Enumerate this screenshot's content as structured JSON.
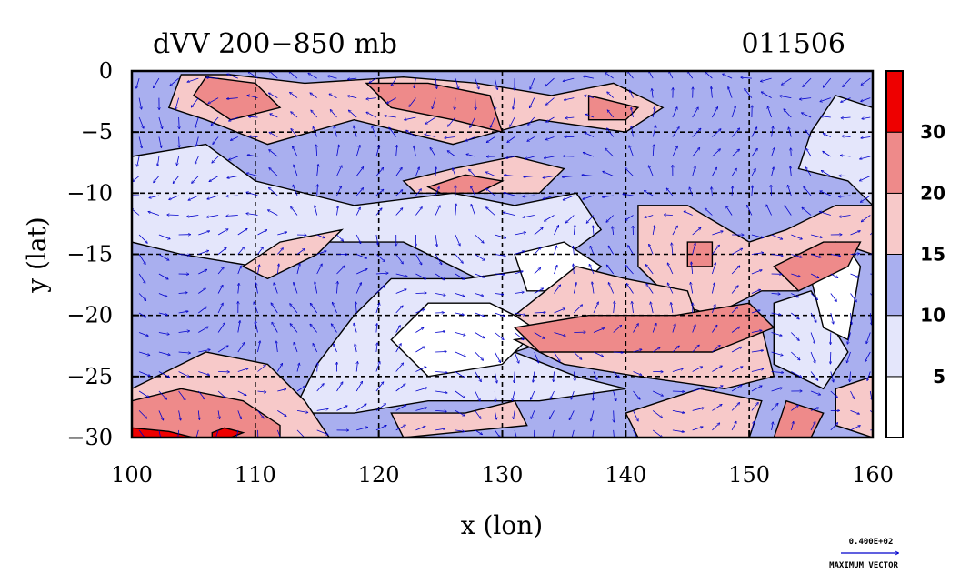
{
  "chart_data": {
    "type": "heatmap",
    "title": "dVV 200−850 mb",
    "date_label": "011506",
    "xlabel": "x (lon)",
    "ylabel": "y (lat)",
    "xlim": [
      100,
      160
    ],
    "ylim": [
      -30,
      0
    ],
    "x_ticks": [
      100,
      110,
      120,
      130,
      140,
      150,
      160
    ],
    "y_ticks": [
      0,
      -5,
      -10,
      -15,
      -20,
      -25,
      -30
    ],
    "grid": true,
    "colorbar": {
      "levels": [
        5,
        10,
        15,
        20,
        30
      ],
      "colors": [
        "#ffffff",
        "#e4e6fb",
        "#a9afef",
        "#f7c9c9",
        "#ee8a8a",
        "#ee0000"
      ]
    },
    "vector_legend": {
      "value_label": "0.400E+02",
      "caption": "MAXIMUM VECTOR",
      "color": "#0000cc"
    }
  }
}
